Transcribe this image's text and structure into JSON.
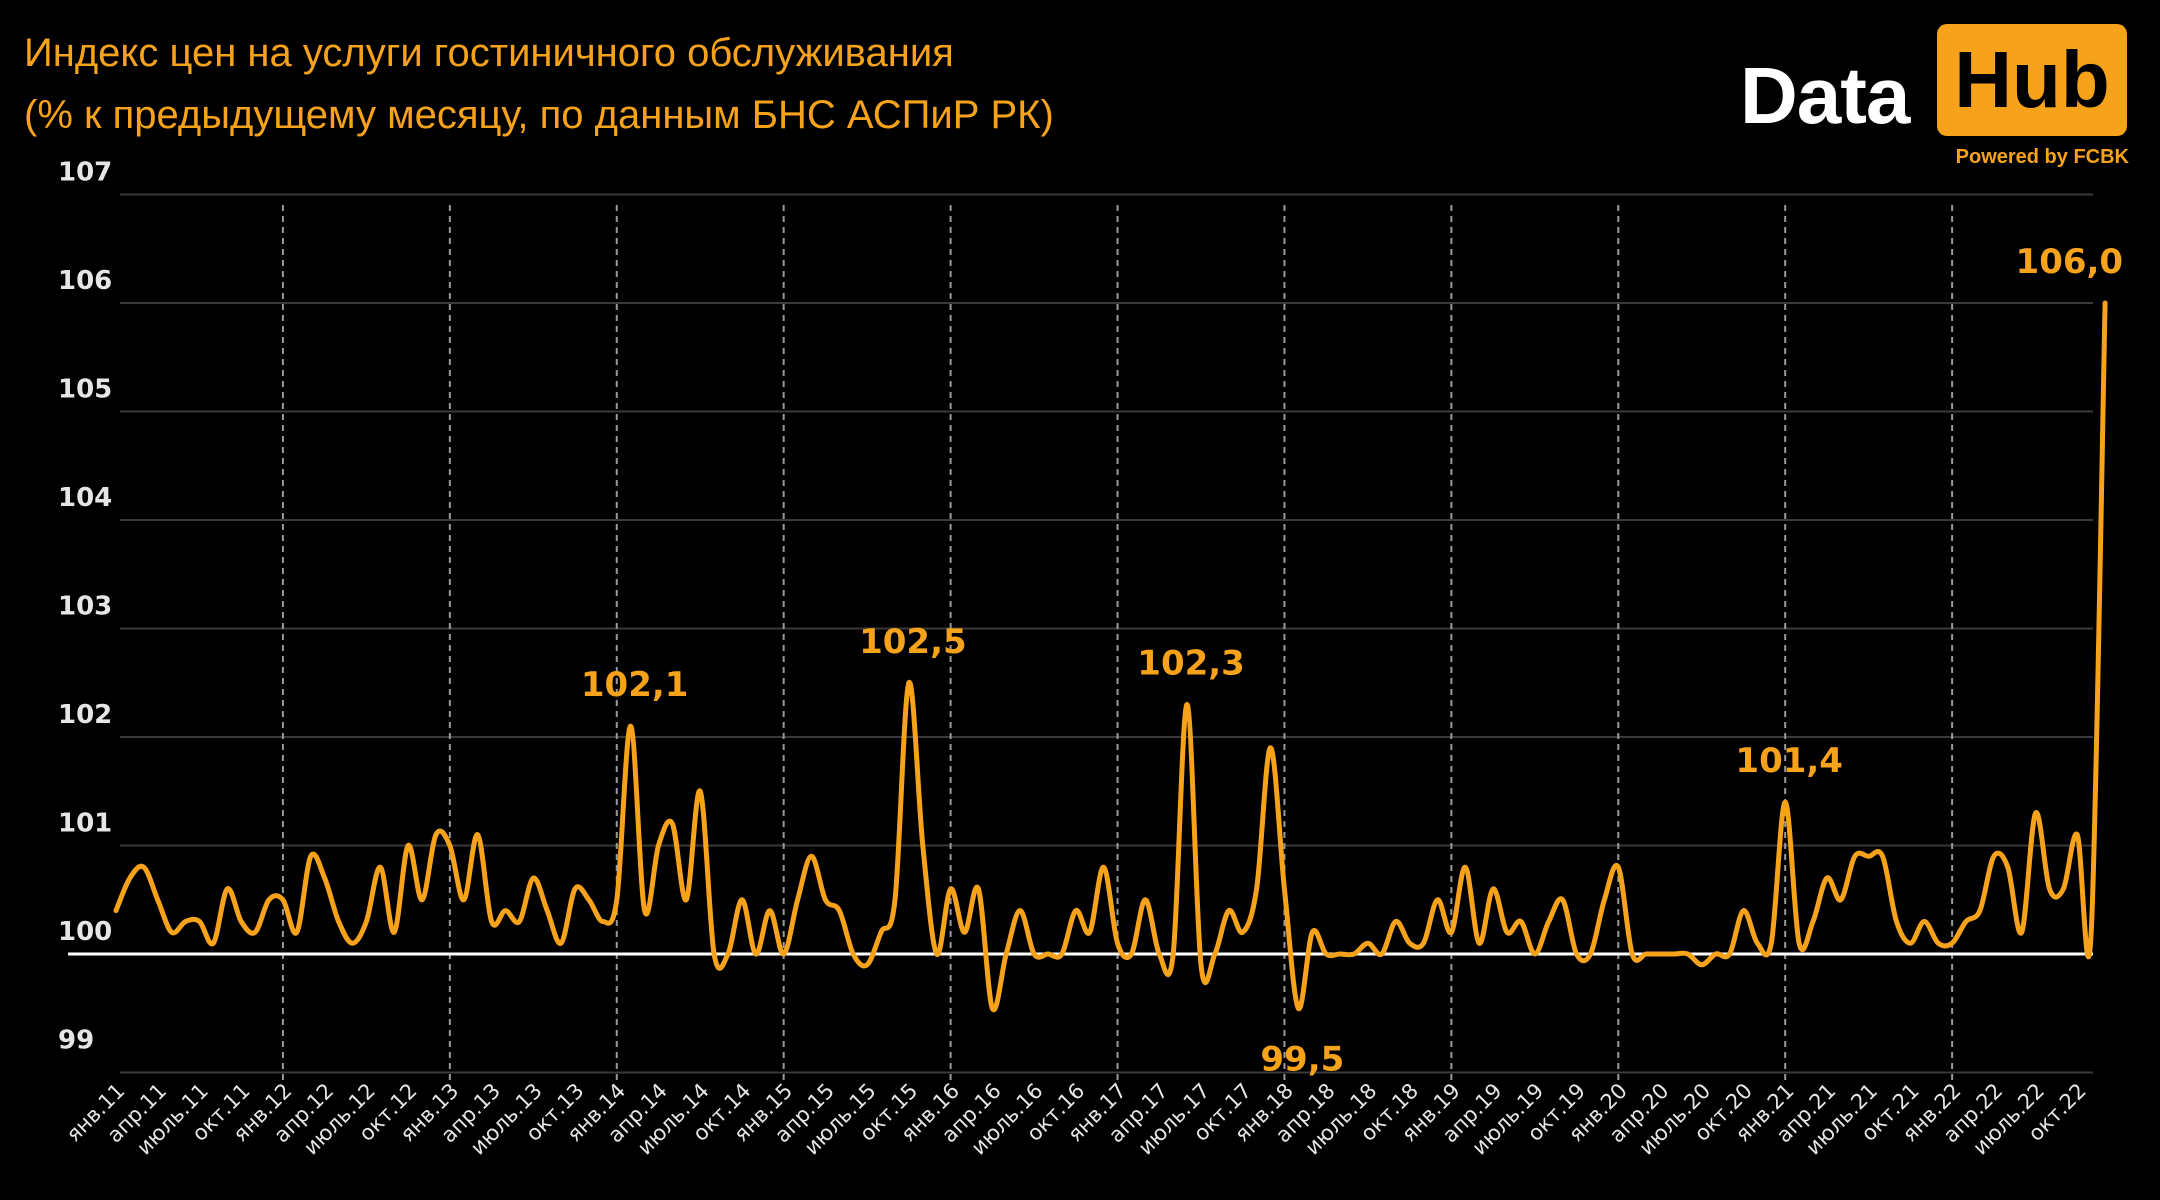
{
  "title": {
    "line1": "Индекс цен на услуги гостиничного обслуживания",
    "line2": "(% к предыдущему месяцу, по данным БНС АСПиР РК)"
  },
  "logo": {
    "word1": "Data",
    "word2": "Hub",
    "subtitle": "Powered by FCBK"
  },
  "colors": {
    "background": "#000000",
    "line": "#f7a21b",
    "accent": "#f7a21b",
    "grid": "#3a3a3a",
    "baseline": "#ffffff",
    "year_separator": "#9a9a9a",
    "tick_text": "#e6e6e6"
  },
  "chart_data": {
    "type": "line",
    "title": "Индекс цен на услуги гостиничного обслуживания (% к предыдущему месяцу, по данным БНС АСПиР РК)",
    "xlabel": "",
    "ylabel": "",
    "ylim": [
      99,
      107
    ],
    "yticks": [
      99,
      100,
      101,
      102,
      103,
      104,
      105,
      106,
      107
    ],
    "grid": true,
    "reference_line": 100,
    "x_start": "янв.11",
    "x_end": "окт.22",
    "frequency": "monthly",
    "xtick_labels": [
      "янв.11",
      "апр.11",
      "июль.11",
      "окт.11",
      "янв.12",
      "апр.12",
      "июль.12",
      "окт.12",
      "янв.13",
      "апр.13",
      "июль.13",
      "окт.13",
      "янв.14",
      "апр.14",
      "июль.14",
      "окт.14",
      "янв.15",
      "апр.15",
      "июль.15",
      "окт.15",
      "янв.16",
      "апр.16",
      "июль.16",
      "окт.16",
      "янв.17",
      "апр.17",
      "июль.17",
      "окт.17",
      "янв.18",
      "апр.18",
      "июль.18",
      "окт.18",
      "янв.19",
      "апр.19",
      "июль.19",
      "окт.19",
      "янв.20",
      "апр.20",
      "июль.20",
      "окт.20",
      "янв.21",
      "апр.21",
      "июль.21",
      "окт.21",
      "янв.22",
      "апр.22",
      "июль.22",
      "окт.22"
    ],
    "series": [
      {
        "name": "Индекс цен на услуги гостиничного обслуживания",
        "values": [
          100.4,
          100.7,
          100.8,
          100.5,
          100.2,
          100.3,
          100.3,
          100.1,
          100.6,
          100.3,
          100.2,
          100.5,
          100.5,
          100.2,
          100.9,
          100.7,
          100.3,
          100.1,
          100.3,
          100.8,
          100.2,
          101.0,
          100.5,
          101.1,
          101.0,
          100.5,
          101.1,
          100.3,
          100.4,
          100.3,
          100.7,
          100.4,
          100.1,
          100.6,
          100.5,
          100.3,
          100.5,
          102.1,
          100.4,
          101.0,
          101.2,
          100.5,
          101.5,
          100.0,
          100.0,
          100.5,
          100.0,
          100.4,
          100.0,
          100.5,
          100.9,
          100.5,
          100.4,
          100.0,
          99.9,
          100.2,
          100.5,
          102.5,
          101.0,
          100.0,
          100.6,
          100.2,
          100.6,
          99.5,
          100.0,
          100.4,
          100.0,
          100.0,
          100.0,
          100.4,
          100.2,
          100.8,
          100.1,
          100.0,
          100.5,
          100.0,
          100.0,
          102.3,
          99.9,
          100.0,
          100.4,
          100.2,
          100.6,
          101.9,
          100.6,
          99.5,
          100.2,
          100.0,
          100.0,
          100.0,
          100.1,
          100.0,
          100.3,
          100.1,
          100.1,
          100.5,
          100.2,
          100.8,
          100.1,
          100.6,
          100.2,
          100.3,
          100.0,
          100.3,
          100.5,
          100.0,
          100.0,
          100.5,
          100.8,
          100.0,
          100.0,
          100.0,
          100.0,
          100.0,
          99.9,
          100.0,
          100.0,
          100.4,
          100.1,
          100.1,
          101.4,
          100.1,
          100.3,
          100.7,
          100.5,
          100.9,
          100.9,
          100.9,
          100.3,
          100.1,
          100.3,
          100.1,
          100.1,
          100.3,
          100.4,
          100.9,
          100.8,
          100.2,
          101.3,
          100.6,
          100.6,
          101.1,
          100.2,
          106.0
        ]
      }
    ],
    "annotations": [
      {
        "label": "102,1",
        "month_index": 37,
        "value": 102.1,
        "position": "above"
      },
      {
        "label": "102,5",
        "month_index": 57,
        "value": 102.5,
        "position": "above"
      },
      {
        "label": "102,3",
        "month_index": 77,
        "value": 102.3,
        "position": "above"
      },
      {
        "label": "99,5",
        "month_index": 85,
        "value": 99.5,
        "position": "below"
      },
      {
        "label": "101,4",
        "month_index": 120,
        "value": 101.4,
        "position": "above"
      },
      {
        "label": "106,0",
        "month_index": 141,
        "value": 106.0,
        "position": "above"
      }
    ]
  }
}
